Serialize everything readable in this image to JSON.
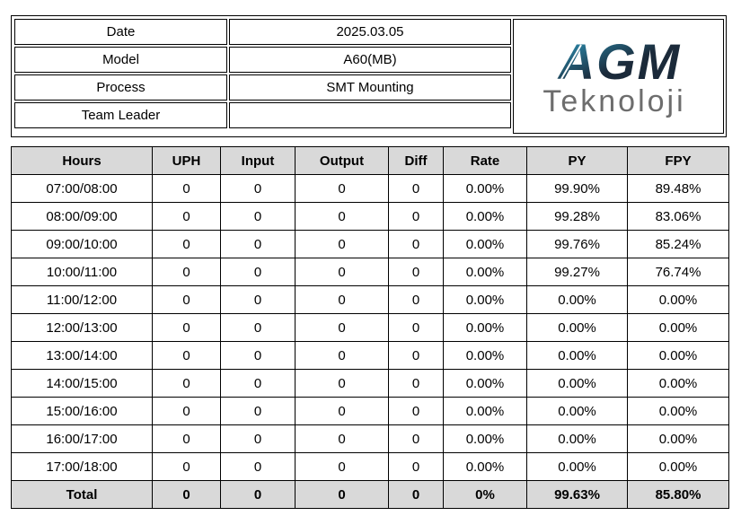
{
  "info": {
    "date_label": "Date",
    "date_value": "2025.03.05",
    "model_label": "Model",
    "model_value": "A60(MB)",
    "process_label": "Process",
    "process_value": "SMT Mounting",
    "leader_label": "Team Leader",
    "leader_value": ""
  },
  "logo": {
    "brand": "AGM",
    "sub": "Teknoloji",
    "brand_color": "#1b2a3a",
    "accent_color": "#2fa3c9",
    "sub_color": "#6d6d6d"
  },
  "table": {
    "headers": [
      "Hours",
      "UPH",
      "Input",
      "Output",
      "Diff",
      "Rate",
      "PY",
      "FPY"
    ],
    "rows": [
      [
        "07:00/08:00",
        "0",
        "0",
        "0",
        "0",
        "0.00%",
        "99.90%",
        "89.48%"
      ],
      [
        "08:00/09:00",
        "0",
        "0",
        "0",
        "0",
        "0.00%",
        "99.28%",
        "83.06%"
      ],
      [
        "09:00/10:00",
        "0",
        "0",
        "0",
        "0",
        "0.00%",
        "99.76%",
        "85.24%"
      ],
      [
        "10:00/11:00",
        "0",
        "0",
        "0",
        "0",
        "0.00%",
        "99.27%",
        "76.74%"
      ],
      [
        "11:00/12:00",
        "0",
        "0",
        "0",
        "0",
        "0.00%",
        "0.00%",
        "0.00%"
      ],
      [
        "12:00/13:00",
        "0",
        "0",
        "0",
        "0",
        "0.00%",
        "0.00%",
        "0.00%"
      ],
      [
        "13:00/14:00",
        "0",
        "0",
        "0",
        "0",
        "0.00%",
        "0.00%",
        "0.00%"
      ],
      [
        "14:00/15:00",
        "0",
        "0",
        "0",
        "0",
        "0.00%",
        "0.00%",
        "0.00%"
      ],
      [
        "15:00/16:00",
        "0",
        "0",
        "0",
        "0",
        "0.00%",
        "0.00%",
        "0.00%"
      ],
      [
        "16:00/17:00",
        "0",
        "0",
        "0",
        "0",
        "0.00%",
        "0.00%",
        "0.00%"
      ],
      [
        "17:00/18:00",
        "0",
        "0",
        "0",
        "0",
        "0.00%",
        "0.00%",
        "0.00%"
      ]
    ],
    "total": [
      "Total",
      "0",
      "0",
      "0",
      "0",
      "0%",
      "99.63%",
      "85.80%"
    ]
  }
}
